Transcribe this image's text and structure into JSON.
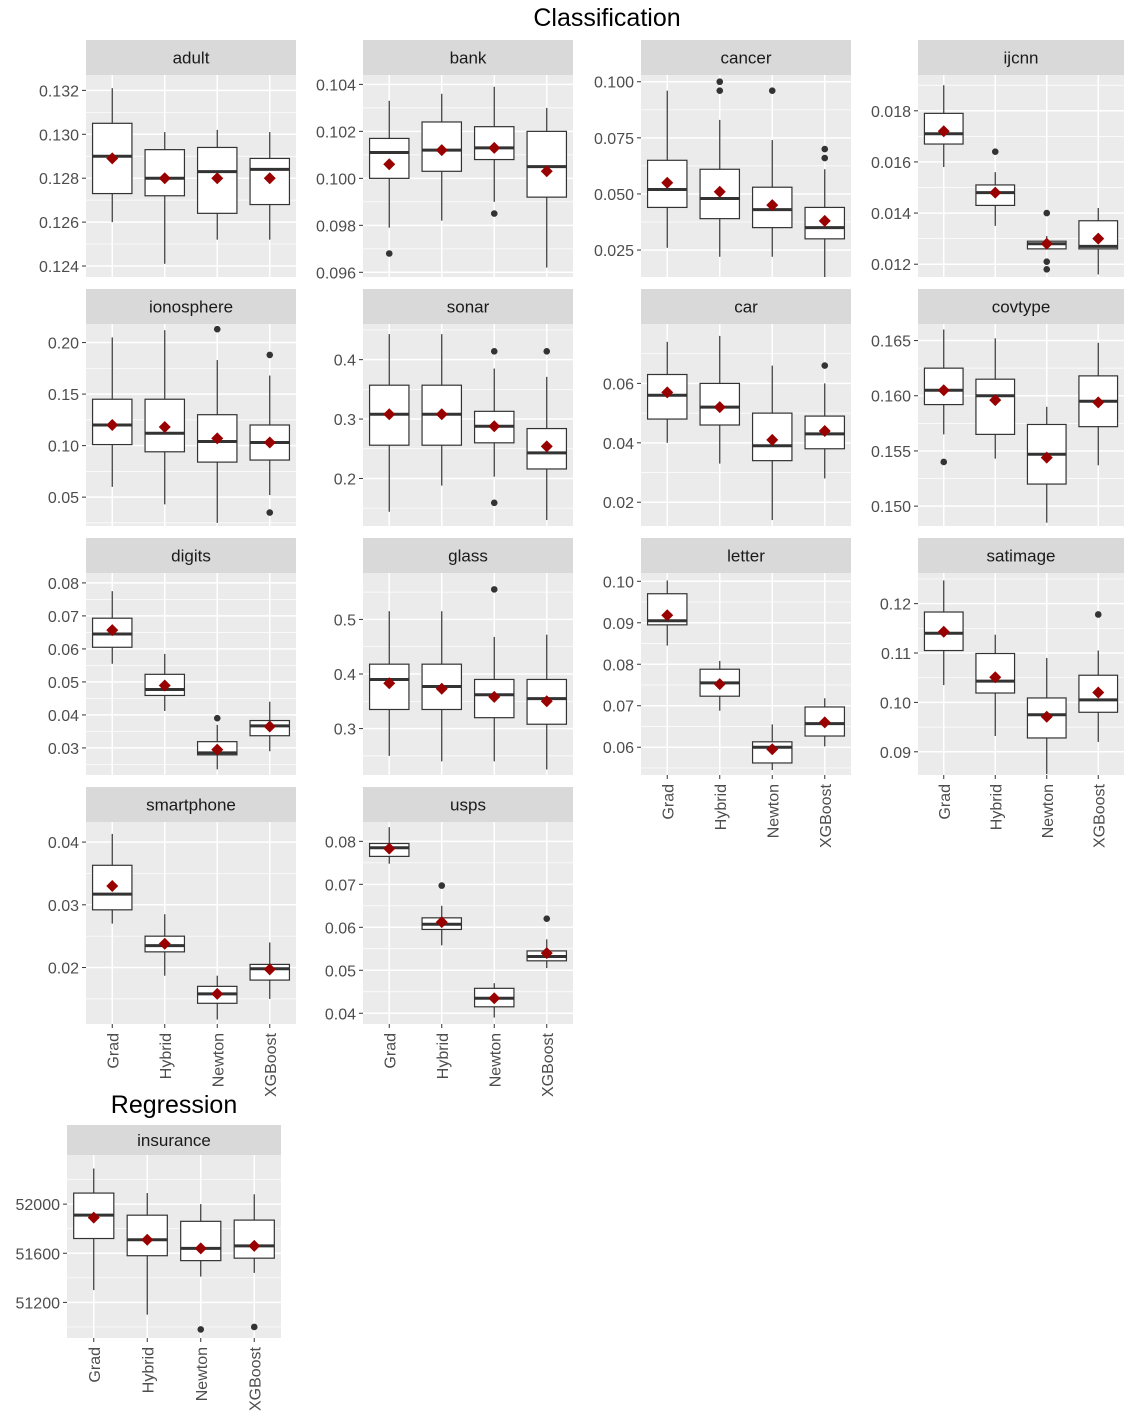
{
  "figure": {
    "classification_title": "Classification",
    "regression_title": "Regression"
  },
  "chart_data": {
    "type": "boxplot",
    "categories": [
      "Grad",
      "Hybrid",
      "Newton",
      "XGBoost"
    ],
    "colors": {
      "panel_bg": "#ebebeb",
      "grid": "#ffffff",
      "strip_bg": "#d9d9d9",
      "box_fill": "#ffffff",
      "box_line": "#333333",
      "mean_marker": "#990000",
      "outlier": "#333333"
    },
    "panels": [
      {
        "name": "adult",
        "group": "Classification",
        "ylim": [
          0.1235,
          0.1327
        ],
        "ticks": [
          "0.124",
          "0.126",
          "0.128",
          "0.130",
          "0.132"
        ],
        "stats": [
          {
            "whisker_low": 0.126,
            "q1": 0.1273,
            "median": 0.129,
            "q3": 0.1305,
            "whisker_high": 0.1321,
            "mean": 0.1289,
            "outliers": []
          },
          {
            "whisker_low": 0.1241,
            "q1": 0.1272,
            "median": 0.128,
            "q3": 0.1293,
            "whisker_high": 0.1301,
            "mean": 0.128,
            "outliers": []
          },
          {
            "whisker_low": 0.1252,
            "q1": 0.1264,
            "median": 0.1283,
            "q3": 0.1294,
            "whisker_high": 0.1302,
            "mean": 0.128,
            "outliers": []
          },
          {
            "whisker_low": 0.1252,
            "q1": 0.1268,
            "median": 0.1284,
            "q3": 0.1289,
            "whisker_high": 0.1301,
            "mean": 0.128,
            "outliers": []
          }
        ]
      },
      {
        "name": "bank",
        "group": "Classification",
        "ylim": [
          0.0958,
          0.1044
        ],
        "ticks": [
          "0.096",
          "0.098",
          "0.100",
          "0.102",
          "0.104"
        ],
        "stats": [
          {
            "whisker_low": 0.0979,
            "q1": 0.1,
            "median": 0.1011,
            "q3": 0.1017,
            "whisker_high": 0.1033,
            "mean": 0.1006,
            "outliers": [
              0.0968
            ]
          },
          {
            "whisker_low": 0.0982,
            "q1": 0.1003,
            "median": 0.1012,
            "q3": 0.1024,
            "whisker_high": 0.1036,
            "mean": 0.1012,
            "outliers": []
          },
          {
            "whisker_low": 0.099,
            "q1": 0.1008,
            "median": 0.1013,
            "q3": 0.1022,
            "whisker_high": 0.1039,
            "mean": 0.1013,
            "outliers": [
              0.0985
            ]
          },
          {
            "whisker_low": 0.0962,
            "q1": 0.0992,
            "median": 0.1005,
            "q3": 0.102,
            "whisker_high": 0.103,
            "mean": 0.1003,
            "outliers": []
          }
        ]
      },
      {
        "name": "cancer",
        "group": "Classification",
        "ylim": [
          0.013,
          0.103
        ],
        "ticks": [
          "0.025",
          "0.050",
          "0.075",
          "0.100"
        ],
        "stats": [
          {
            "whisker_low": 0.026,
            "q1": 0.044,
            "median": 0.052,
            "q3": 0.065,
            "whisker_high": 0.096,
            "mean": 0.055,
            "outliers": []
          },
          {
            "whisker_low": 0.022,
            "q1": 0.039,
            "median": 0.048,
            "q3": 0.061,
            "whisker_high": 0.083,
            "mean": 0.051,
            "outliers": [
              0.096,
              0.1
            ]
          },
          {
            "whisker_low": 0.022,
            "q1": 0.035,
            "median": 0.043,
            "q3": 0.053,
            "whisker_high": 0.074,
            "mean": 0.045,
            "outliers": [
              0.096
            ]
          },
          {
            "whisker_low": 0.013,
            "q1": 0.03,
            "median": 0.035,
            "q3": 0.044,
            "whisker_high": 0.061,
            "mean": 0.038,
            "outliers": [
              0.066,
              0.07
            ]
          }
        ]
      },
      {
        "name": "ijcnn",
        "group": "Classification",
        "ylim": [
          0.0115,
          0.0194
        ],
        "ticks": [
          "0.012",
          "0.014",
          "0.016",
          "0.018"
        ],
        "stats": [
          {
            "whisker_low": 0.0158,
            "q1": 0.0167,
            "median": 0.0171,
            "q3": 0.0179,
            "whisker_high": 0.019,
            "mean": 0.0172,
            "outliers": []
          },
          {
            "whisker_low": 0.0135,
            "q1": 0.0143,
            "median": 0.0148,
            "q3": 0.0151,
            "whisker_high": 0.0156,
            "mean": 0.0148,
            "outliers": [
              0.0164
            ]
          },
          {
            "whisker_low": 0.0126,
            "q1": 0.0126,
            "median": 0.0128,
            "q3": 0.0129,
            "whisker_high": 0.0131,
            "mean": 0.0128,
            "outliers": [
              0.0118,
              0.0121,
              0.014
            ]
          },
          {
            "whisker_low": 0.0116,
            "q1": 0.0126,
            "median": 0.0127,
            "q3": 0.0137,
            "whisker_high": 0.0142,
            "mean": 0.013,
            "outliers": []
          }
        ]
      },
      {
        "name": "ionosphere",
        "group": "Classification",
        "ylim": [
          0.022,
          0.218
        ],
        "ticks": [
          "0.05",
          "0.10",
          "0.15",
          "0.20"
        ],
        "stats": [
          {
            "whisker_low": 0.06,
            "q1": 0.101,
            "median": 0.12,
            "q3": 0.145,
            "whisker_high": 0.205,
            "mean": 0.12,
            "outliers": []
          },
          {
            "whisker_low": 0.043,
            "q1": 0.094,
            "median": 0.112,
            "q3": 0.145,
            "whisker_high": 0.212,
            "mean": 0.118,
            "outliers": []
          },
          {
            "whisker_low": 0.025,
            "q1": 0.084,
            "median": 0.104,
            "q3": 0.13,
            "whisker_high": 0.183,
            "mean": 0.107,
            "outliers": [
              0.213
            ]
          },
          {
            "whisker_low": 0.052,
            "q1": 0.086,
            "median": 0.103,
            "q3": 0.12,
            "whisker_high": 0.168,
            "mean": 0.103,
            "outliers": [
              0.035,
              0.188
            ]
          }
        ]
      },
      {
        "name": "sonar",
        "group": "Classification",
        "ylim": [
          0.12,
          0.46
        ],
        "ticks": [
          "0.2",
          "0.3",
          "0.4"
        ],
        "stats": [
          {
            "whisker_low": 0.144,
            "q1": 0.256,
            "median": 0.308,
            "q3": 0.357,
            "whisker_high": 0.443,
            "mean": 0.308,
            "outliers": []
          },
          {
            "whisker_low": 0.188,
            "q1": 0.256,
            "median": 0.308,
            "q3": 0.357,
            "whisker_high": 0.443,
            "mean": 0.308,
            "outliers": []
          },
          {
            "whisker_low": 0.203,
            "q1": 0.26,
            "median": 0.288,
            "q3": 0.313,
            "whisker_high": 0.385,
            "mean": 0.288,
            "outliers": [
              0.159,
              0.414
            ]
          },
          {
            "whisker_low": 0.13,
            "q1": 0.216,
            "median": 0.243,
            "q3": 0.284,
            "whisker_high": 0.371,
            "mean": 0.254,
            "outliers": [
              0.414
            ]
          }
        ]
      },
      {
        "name": "car",
        "group": "Classification",
        "ylim": [
          0.012,
          0.08
        ],
        "ticks": [
          "0.02",
          "0.04",
          "0.06"
        ],
        "stats": [
          {
            "whisker_low": 0.04,
            "q1": 0.048,
            "median": 0.056,
            "q3": 0.063,
            "whisker_high": 0.074,
            "mean": 0.057,
            "outliers": []
          },
          {
            "whisker_low": 0.033,
            "q1": 0.046,
            "median": 0.052,
            "q3": 0.06,
            "whisker_high": 0.076,
            "mean": 0.052,
            "outliers": []
          },
          {
            "whisker_low": 0.014,
            "q1": 0.034,
            "median": 0.039,
            "q3": 0.05,
            "whisker_high": 0.066,
            "mean": 0.041,
            "outliers": []
          },
          {
            "whisker_low": 0.028,
            "q1": 0.038,
            "median": 0.043,
            "q3": 0.049,
            "whisker_high": 0.06,
            "mean": 0.044,
            "outliers": [
              0.066
            ]
          }
        ]
      },
      {
        "name": "covtype",
        "group": "Classification",
        "ylim": [
          0.1482,
          0.1665
        ],
        "ticks": [
          "0.150",
          "0.155",
          "0.160",
          "0.165"
        ],
        "stats": [
          {
            "whisker_low": 0.1565,
            "q1": 0.1592,
            "median": 0.1605,
            "q3": 0.1625,
            "whisker_high": 0.166,
            "mean": 0.1605,
            "outliers": [
              0.154
            ]
          },
          {
            "whisker_low": 0.1543,
            "q1": 0.1565,
            "median": 0.16,
            "q3": 0.1615,
            "whisker_high": 0.1652,
            "mean": 0.1596,
            "outliers": []
          },
          {
            "whisker_low": 0.1485,
            "q1": 0.152,
            "median": 0.1547,
            "q3": 0.1574,
            "whisker_high": 0.159,
            "mean": 0.1544,
            "outliers": []
          },
          {
            "whisker_low": 0.1537,
            "q1": 0.1572,
            "median": 0.1595,
            "q3": 0.1618,
            "whisker_high": 0.1648,
            "mean": 0.1594,
            "outliers": []
          }
        ]
      },
      {
        "name": "digits",
        "group": "Classification",
        "ylim": [
          0.0218,
          0.083
        ],
        "ticks": [
          "0.03",
          "0.04",
          "0.05",
          "0.06",
          "0.07",
          "0.08"
        ],
        "stats": [
          {
            "whisker_low": 0.0555,
            "q1": 0.0605,
            "median": 0.0645,
            "q3": 0.0693,
            "whisker_high": 0.0775,
            "mean": 0.0657,
            "outliers": []
          },
          {
            "whisker_low": 0.0412,
            "q1": 0.0459,
            "median": 0.0477,
            "q3": 0.0523,
            "whisker_high": 0.0585,
            "mean": 0.0489,
            "outliers": []
          },
          {
            "whisker_low": 0.0235,
            "q1": 0.0279,
            "median": 0.0285,
            "q3": 0.0319,
            "whisker_high": 0.037,
            "mean": 0.0295,
            "outliers": [
              0.039
            ]
          },
          {
            "whisker_low": 0.029,
            "q1": 0.0337,
            "median": 0.0367,
            "q3": 0.0383,
            "whisker_high": 0.044,
            "mean": 0.0365,
            "outliers": []
          }
        ]
      },
      {
        "name": "glass",
        "group": "Classification",
        "ylim": [
          0.215,
          0.585
        ],
        "ticks": [
          "0.3",
          "0.4",
          "0.5"
        ],
        "stats": [
          {
            "whisker_low": 0.25,
            "q1": 0.335,
            "median": 0.39,
            "q3": 0.418,
            "whisker_high": 0.515,
            "mean": 0.383,
            "outliers": []
          },
          {
            "whisker_low": 0.24,
            "q1": 0.335,
            "median": 0.377,
            "q3": 0.418,
            "whisker_high": 0.515,
            "mean": 0.373,
            "outliers": []
          },
          {
            "whisker_low": 0.24,
            "q1": 0.32,
            "median": 0.362,
            "q3": 0.39,
            "whisker_high": 0.468,
            "mean": 0.358,
            "outliers": [
              0.555
            ]
          },
          {
            "whisker_low": 0.225,
            "q1": 0.308,
            "median": 0.355,
            "q3": 0.39,
            "whisker_high": 0.472,
            "mean": 0.35,
            "outliers": []
          }
        ]
      },
      {
        "name": "letter",
        "group": "Classification",
        "ylim": [
          0.0533,
          0.102
        ],
        "ticks": [
          "0.06",
          "0.07",
          "0.08",
          "0.09",
          "0.10"
        ],
        "stats": [
          {
            "whisker_low": 0.0845,
            "q1": 0.0895,
            "median": 0.0905,
            "q3": 0.097,
            "whisker_high": 0.1002,
            "mean": 0.0918,
            "outliers": []
          },
          {
            "whisker_low": 0.0688,
            "q1": 0.0723,
            "median": 0.0755,
            "q3": 0.0788,
            "whisker_high": 0.0808,
            "mean": 0.0752,
            "outliers": []
          },
          {
            "whisker_low": 0.0545,
            "q1": 0.0562,
            "median": 0.06,
            "q3": 0.0613,
            "whisker_high": 0.0655,
            "mean": 0.0595,
            "outliers": []
          },
          {
            "whisker_low": 0.0602,
            "q1": 0.0627,
            "median": 0.0657,
            "q3": 0.0697,
            "whisker_high": 0.0718,
            "mean": 0.066,
            "outliers": []
          }
        ]
      },
      {
        "name": "satimage",
        "group": "Classification",
        "ylim": [
          0.0853,
          0.1262
        ],
        "ticks": [
          "0.09",
          "0.10",
          "0.11",
          "0.12"
        ],
        "stats": [
          {
            "whisker_low": 0.1035,
            "q1": 0.1105,
            "median": 0.114,
            "q3": 0.1183,
            "whisker_high": 0.1247,
            "mean": 0.1143,
            "outliers": []
          },
          {
            "whisker_low": 0.0932,
            "q1": 0.1019,
            "median": 0.1043,
            "q3": 0.1099,
            "whisker_high": 0.1137,
            "mean": 0.1051,
            "outliers": []
          },
          {
            "whisker_low": 0.0855,
            "q1": 0.0928,
            "median": 0.0975,
            "q3": 0.1009,
            "whisker_high": 0.109,
            "mean": 0.0971,
            "outliers": []
          },
          {
            "whisker_low": 0.092,
            "q1": 0.098,
            "median": 0.1005,
            "q3": 0.1055,
            "whisker_high": 0.1105,
            "mean": 0.102,
            "outliers": [
              0.1178
            ]
          }
        ]
      },
      {
        "name": "smartphone",
        "group": "Classification",
        "ylim": [
          0.011,
          0.0432
        ],
        "ticks": [
          "0.02",
          "0.03",
          "0.04"
        ],
        "stats": [
          {
            "whisker_low": 0.027,
            "q1": 0.0292,
            "median": 0.0317,
            "q3": 0.0363,
            "whisker_high": 0.0413,
            "mean": 0.033,
            "outliers": []
          },
          {
            "whisker_low": 0.0187,
            "q1": 0.0225,
            "median": 0.0235,
            "q3": 0.025,
            "whisker_high": 0.0285,
            "mean": 0.0238,
            "outliers": []
          },
          {
            "whisker_low": 0.0117,
            "q1": 0.0143,
            "median": 0.0158,
            "q3": 0.017,
            "whisker_high": 0.0187,
            "mean": 0.0158,
            "outliers": []
          },
          {
            "whisker_low": 0.015,
            "q1": 0.018,
            "median": 0.0198,
            "q3": 0.0205,
            "whisker_high": 0.024,
            "mean": 0.0197,
            "outliers": []
          }
        ]
      },
      {
        "name": "usps",
        "group": "Classification",
        "ylim": [
          0.0375,
          0.0845
        ],
        "ticks": [
          "0.04",
          "0.05",
          "0.06",
          "0.07",
          "0.08"
        ],
        "stats": [
          {
            "whisker_low": 0.0748,
            "q1": 0.0765,
            "median": 0.0785,
            "q3": 0.0795,
            "whisker_high": 0.0833,
            "mean": 0.0783,
            "outliers": []
          },
          {
            "whisker_low": 0.0558,
            "q1": 0.0595,
            "median": 0.0607,
            "q3": 0.0622,
            "whisker_high": 0.065,
            "mean": 0.0612,
            "outliers": [
              0.0697
            ]
          },
          {
            "whisker_low": 0.039,
            "q1": 0.0415,
            "median": 0.0435,
            "q3": 0.0458,
            "whisker_high": 0.047,
            "mean": 0.0435,
            "outliers": []
          },
          {
            "whisker_low": 0.0505,
            "q1": 0.0522,
            "median": 0.0532,
            "q3": 0.0545,
            "whisker_high": 0.0572,
            "mean": 0.054,
            "outliers": [
              0.062
            ]
          }
        ]
      },
      {
        "name": "insurance",
        "group": "Regression",
        "ylim": [
          50910,
          52400
        ],
        "ticks": [
          "51200",
          "51600",
          "52000"
        ],
        "stats": [
          {
            "whisker_low": 51300,
            "q1": 51720,
            "median": 51910,
            "q3": 52090,
            "whisker_high": 52290,
            "mean": 51890,
            "outliers": []
          },
          {
            "whisker_low": 51100,
            "q1": 51580,
            "median": 51710,
            "q3": 51910,
            "whisker_high": 52090,
            "mean": 51710,
            "outliers": []
          },
          {
            "whisker_low": 51410,
            "q1": 51540,
            "median": 51640,
            "q3": 51860,
            "whisker_high": 52000,
            "mean": 51640,
            "outliers": [
              50980
            ]
          },
          {
            "whisker_low": 51440,
            "q1": 51560,
            "median": 51660,
            "q3": 51870,
            "whisker_high": 52080,
            "mean": 51660,
            "outliers": [
              51000
            ]
          }
        ]
      }
    ]
  }
}
